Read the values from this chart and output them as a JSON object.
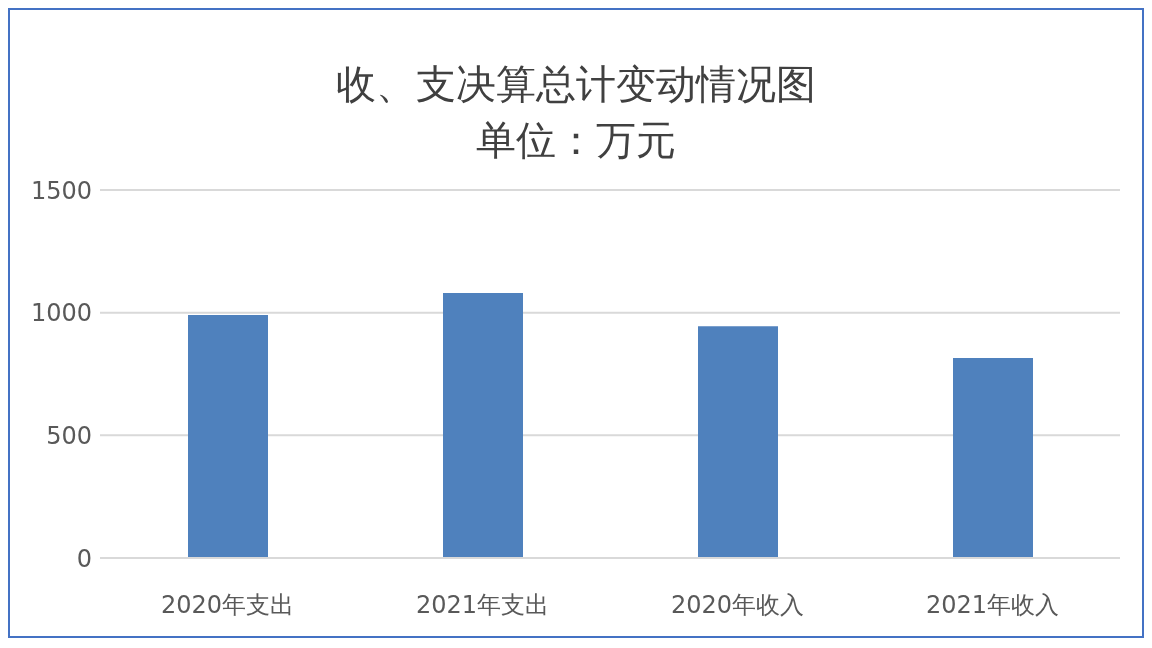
{
  "chart_data": {
    "type": "bar",
    "title": "收、支决算总计变动情况图",
    "subtitle": "单位：万元",
    "categories": [
      "2020年支出",
      "2021年支出",
      "2020年收入",
      "2021年收入"
    ],
    "values": [
      990,
      1080,
      945,
      815
    ],
    "color": "#4f81bd",
    "ylim": [
      0,
      1500
    ],
    "yticks": [
      0,
      500,
      1000,
      1500
    ],
    "grid": "y"
  }
}
